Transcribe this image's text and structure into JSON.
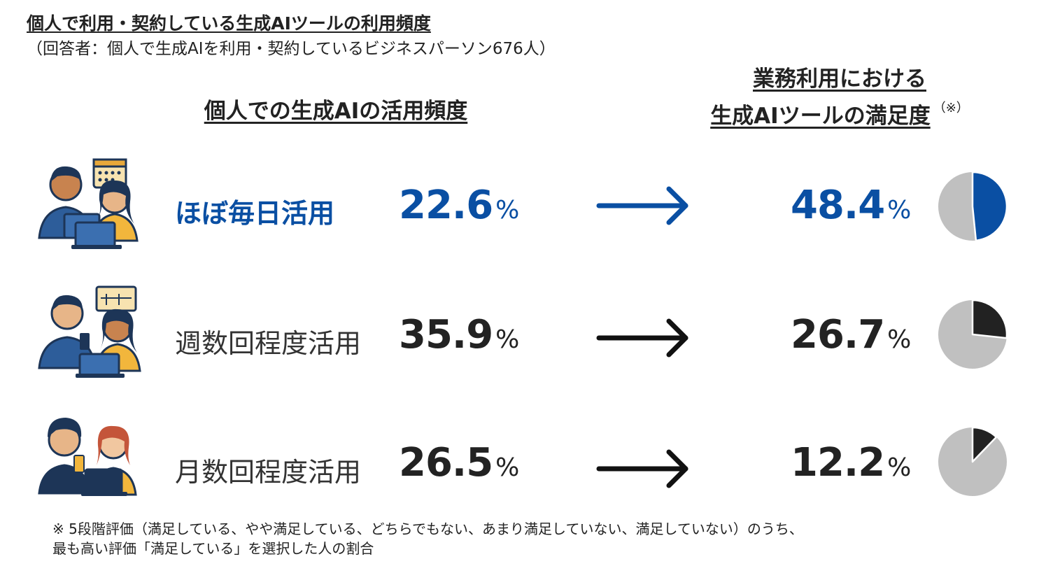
{
  "header": {
    "title": "個人で利用・契約している生成AIツールの利用頻度",
    "subtitle": "（回答者：個人で生成AIを利用・契約しているビジネスパーソン676人）"
  },
  "left_heading": "個人での生成AIの活用頻度",
  "right_heading": {
    "line1": "業務利用における",
    "line2": "生成AIツールの満足度",
    "note_mark": "（※）"
  },
  "unit": "%",
  "colors": {
    "highlight": "#0a4fa3",
    "dark": "#222222",
    "pie_rest": "#c0c0c0"
  },
  "chart_data": {
    "type": "table",
    "columns": [
      "個人での生成AIの活用頻度",
      "業務利用における生成AIツールの満足度"
    ],
    "rows": [
      {
        "category": "ほぼ毎日活用",
        "usage_share": "22.6",
        "satisfaction": "48.4",
        "satisfaction_value": 48.4,
        "highlight": true
      },
      {
        "category": "週数回程度活用",
        "usage_share": "35.9",
        "satisfaction": "26.7",
        "satisfaction_value": 26.7,
        "highlight": false
      },
      {
        "category": "月数回程度活用",
        "usage_share": "26.5",
        "satisfaction": "12.2",
        "satisfaction_value": 12.2,
        "highlight": false
      }
    ],
    "pie_type": "pie",
    "pie_unit": "percent"
  },
  "footnote": {
    "line1": "※ 5段階評価（満足している、やや満足している、どちらでもない、あまり満足していない、満足していない）のうち、",
    "line2": "最も高い評価「満足している」を選択した人の割合"
  }
}
